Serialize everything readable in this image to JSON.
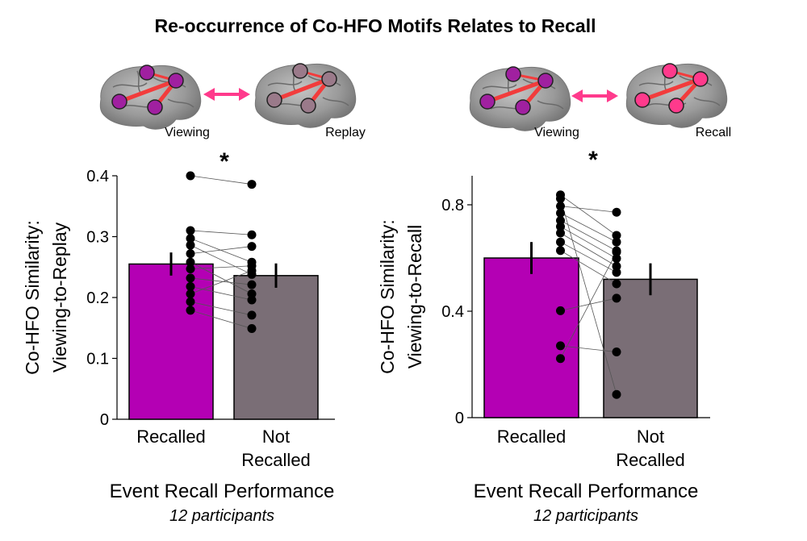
{
  "figure": {
    "title": "Re-occurrence of Co-HFO Motifs Relates to Recall"
  },
  "schematics": [
    {
      "brain_a_label": "Viewing",
      "brain_b_label": "Replay",
      "colors_a": "#a020a0",
      "colors_b": "#9a7a8a"
    },
    {
      "brain_a_label": "Viewing",
      "brain_b_label": "Recall",
      "colors_a": "#a020a0",
      "colors_b": "#ff3a8c"
    }
  ],
  "chart_data": [
    {
      "type": "bar",
      "ylabel_line1": "Co-HFO Similarity:",
      "ylabel_line2": "Viewing-to-Replay",
      "xlabel": "Event Recall Performance",
      "subtitle": "12 participants",
      "significance": "*",
      "ylim": [
        0,
        0.4
      ],
      "yticks": [
        "0",
        "0.1",
        "0.2",
        "0.3",
        "0.4"
      ],
      "yticks_values": [
        0,
        0.1,
        0.2,
        0.3,
        0.4
      ],
      "categories": [
        {
          "line1": "Recalled",
          "line2": ""
        },
        {
          "line1": "Not",
          "line2": "Recalled"
        }
      ],
      "values": [
        0.255,
        0.236
      ],
      "errors": [
        0.019,
        0.02
      ],
      "colors": [
        "#b400b4",
        "#7a6e76"
      ],
      "paired_points": [
        [
          0.4,
          0.386
        ],
        [
          0.31,
          0.303
        ],
        [
          0.297,
          0.258
        ],
        [
          0.286,
          0.238
        ],
        [
          0.272,
          0.284
        ],
        [
          0.258,
          0.206
        ],
        [
          0.247,
          0.252
        ],
        [
          0.232,
          0.221
        ],
        [
          0.218,
          0.196
        ],
        [
          0.206,
          0.244
        ],
        [
          0.193,
          0.171
        ],
        [
          0.179,
          0.149
        ]
      ]
    },
    {
      "type": "bar",
      "ylabel_line1": "Co-HFO Similarity:",
      "ylabel_line2": "Viewing-to-Recall",
      "xlabel": "Event Recall Performance",
      "subtitle": "12 participants",
      "significance": "*",
      "ylim": [
        0,
        0.9
      ],
      "yticks": [
        "0",
        "0.4",
        "0.8"
      ],
      "yticks_values": [
        0,
        0.4,
        0.8
      ],
      "categories": [
        {
          "line1": "Recalled",
          "line2": ""
        },
        {
          "line1": "Not",
          "line2": "Recalled"
        }
      ],
      "values": [
        0.6,
        0.52
      ],
      "errors": [
        0.06,
        0.06
      ],
      "colors": [
        "#b400b4",
        "#7a6e76"
      ],
      "paired_points": [
        [
          0.837,
          0.685
        ],
        [
          0.795,
          0.772
        ],
        [
          0.769,
          0.66
        ],
        [
          0.741,
          0.627
        ],
        [
          0.718,
          0.598
        ],
        [
          0.694,
          0.569
        ],
        [
          0.66,
          0.546
        ],
        [
          0.628,
          0.503
        ],
        [
          0.402,
          0.449
        ],
        [
          0.27,
          0.247
        ],
        [
          0.222,
          0.622
        ],
        [
          0.823,
          0.087
        ]
      ]
    }
  ]
}
